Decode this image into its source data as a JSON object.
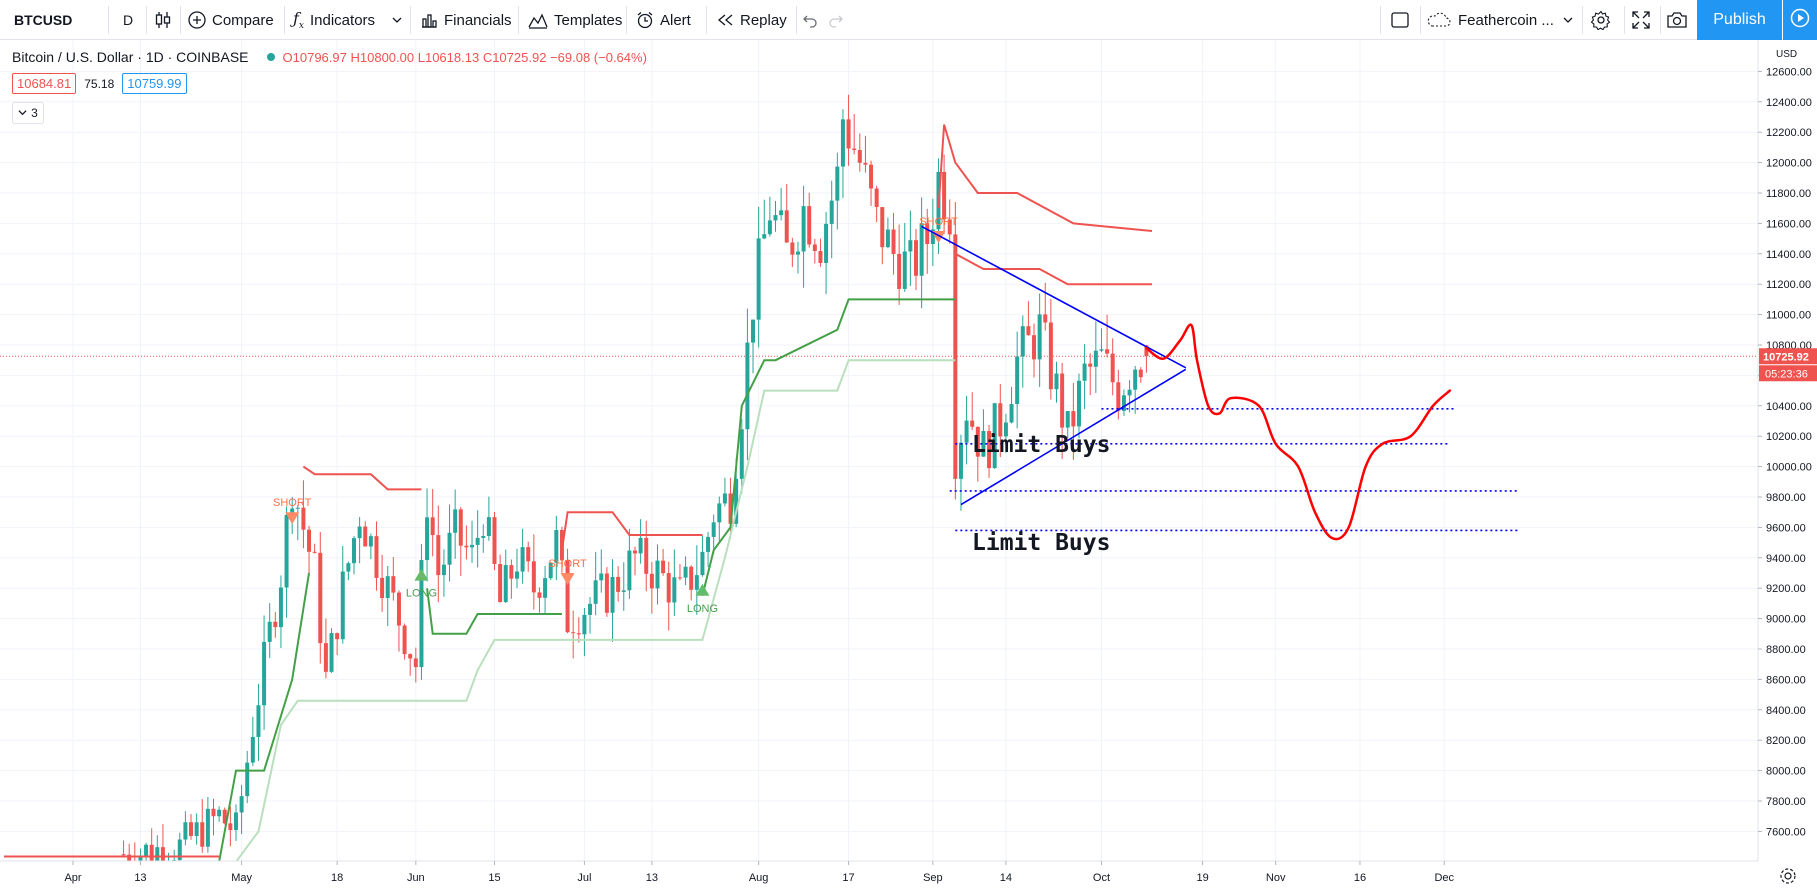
{
  "toolbar": {
    "symbol": "BTCUSD",
    "interval": "D",
    "compare": "Compare",
    "indicators": "Indicators",
    "financials": "Financials",
    "templates": "Templates",
    "alert": "Alert",
    "replay": "Replay",
    "layout_name": "Feathercoin ...",
    "publish": "Publish",
    "icons": [
      "candles-icon",
      "plus-circle-icon",
      "fx-icon",
      "chevron-down-icon",
      "financials-icon",
      "templates-icon",
      "alarm-clock-icon",
      "rewind-icon",
      "undo-icon",
      "redo-icon",
      "square-icon",
      "cloud-icon",
      "gear-icon",
      "fullscreen-icon",
      "camera-icon",
      "play-icon"
    ]
  },
  "legend": {
    "title": "Bitcoin / U.S. Dollar · 1D · COINBASE",
    "open": "O10796.97",
    "high": "H10800.00",
    "low": "L10618.13",
    "close": "C10725.92",
    "change": "−69.08 (−0.64%)",
    "ind_value_1": "10684.81",
    "ind_value_2": "75.18",
    "ind_value_3": "10759.99",
    "collapsed_count": "3"
  },
  "annotations": {
    "limit_buys_1": "Limit Buys",
    "limit_buys_2": "Limit Buys",
    "short_label": "SHORT",
    "long_label": "LONG"
  },
  "price_scale": {
    "currency": "USD",
    "last_price": "10725.92",
    "countdown": "05:23:36"
  },
  "colors": {
    "up": "#26a69a",
    "down": "#ef5350",
    "supertrend_up": "#43a047",
    "supertrend_down": "#ef5350",
    "trendline": "#0000ff",
    "projection": "#ff0000",
    "accent": "#2196f3"
  },
  "chart_data": {
    "type": "candlestick",
    "title": "Bitcoin / U.S. Dollar · 1D · COINBASE",
    "ylim": [
      7400,
      12800
    ],
    "y_ticks": [
      7600,
      7800,
      8000,
      8200,
      8400,
      8600,
      8800,
      9000,
      9200,
      9400,
      9600,
      9800,
      10000,
      10200,
      10400,
      10600,
      10800,
      11000,
      11200,
      11400,
      11600,
      11800,
      12000,
      12200,
      12400,
      12600
    ],
    "x_range": [
      "2019-03-24",
      "2019-12-14"
    ],
    "x_ticks": [
      {
        "label": "Apr",
        "date": "2019-04-01"
      },
      {
        "label": "13",
        "date": "2019-04-13"
      },
      {
        "label": "May",
        "date": "2019-05-01"
      },
      {
        "label": "18",
        "date": "2019-05-18"
      },
      {
        "label": "Jun",
        "date": "2019-06-01"
      },
      {
        "label": "15",
        "date": "2019-06-15"
      },
      {
        "label": "Jul",
        "date": "2019-07-01"
      },
      {
        "label": "13",
        "date": "2019-07-13"
      },
      {
        "label": "Aug",
        "date": "2019-08-01"
      },
      {
        "label": "17",
        "date": "2019-08-17"
      },
      {
        "label": "Sep",
        "date": "2019-09-01"
      },
      {
        "label": "14",
        "date": "2019-09-14"
      },
      {
        "label": "Oct",
        "date": "2019-10-01"
      },
      {
        "label": "19",
        "date": "2019-10-19"
      },
      {
        "label": "Nov",
        "date": "2019-11-01"
      },
      {
        "label": "16",
        "date": "2019-11-16"
      },
      {
        "label": "Dec",
        "date": "2019-12-01"
      }
    ],
    "series": [
      {
        "name": "BTCUSD",
        "anchors": [
          [
            "2019-04-10",
            7450
          ],
          [
            "2019-04-20",
            7500
          ],
          [
            "2019-04-27",
            7700
          ],
          [
            "2019-04-30",
            7600
          ],
          [
            "2019-05-03",
            8300
          ],
          [
            "2019-05-06",
            8900
          ],
          [
            "2019-05-08",
            9300
          ],
          [
            "2019-05-10",
            9900
          ],
          [
            "2019-05-12",
            9600
          ],
          [
            "2019-05-14",
            9300
          ],
          [
            "2019-05-16",
            8600
          ],
          [
            "2019-05-19",
            9200
          ],
          [
            "2019-05-22",
            9700
          ],
          [
            "2019-05-26",
            9300
          ],
          [
            "2019-05-29",
            9000
          ],
          [
            "2019-06-01",
            8700
          ],
          [
            "2019-06-03",
            9800
          ],
          [
            "2019-06-05",
            9300
          ],
          [
            "2019-06-08",
            9550
          ],
          [
            "2019-06-11",
            9400
          ],
          [
            "2019-06-13",
            9700
          ],
          [
            "2019-06-16",
            9100
          ],
          [
            "2019-06-19",
            9400
          ],
          [
            "2019-06-22",
            9200
          ],
          [
            "2019-06-26",
            9500
          ],
          [
            "2019-06-28",
            9000
          ],
          [
            "2019-07-02",
            9100
          ],
          [
            "2019-07-06",
            9200
          ],
          [
            "2019-07-10",
            9400
          ],
          [
            "2019-07-14",
            9300
          ],
          [
            "2019-07-18",
            9150
          ],
          [
            "2019-07-22",
            9400
          ],
          [
            "2019-07-24",
            9700
          ],
          [
            "2019-07-27",
            9800
          ],
          [
            "2019-07-29",
            10400
          ],
          [
            "2019-07-31",
            11100
          ],
          [
            "2019-08-03",
            11700
          ],
          [
            "2019-08-06",
            11400
          ],
          [
            "2019-08-09",
            11700
          ],
          [
            "2019-08-12",
            11500
          ],
          [
            "2019-08-15",
            11900
          ],
          [
            "2019-08-16",
            12300
          ],
          [
            "2019-08-19",
            12000
          ],
          [
            "2019-08-22",
            11600
          ],
          [
            "2019-08-25",
            11400
          ],
          [
            "2019-08-28",
            11300
          ],
          [
            "2019-08-31",
            11500
          ],
          [
            "2019-09-02",
            11900
          ],
          [
            "2019-09-04",
            11700
          ],
          [
            "2019-09-05",
            10100
          ],
          [
            "2019-09-07",
            10400
          ],
          [
            "2019-09-10",
            10100
          ],
          [
            "2019-09-13",
            10300
          ],
          [
            "2019-09-16",
            10700
          ],
          [
            "2019-09-20",
            10900
          ],
          [
            "2019-09-23",
            10500
          ],
          [
            "2019-09-25",
            10200
          ],
          [
            "2019-09-28",
            10600
          ],
          [
            "2019-10-01",
            10700
          ],
          [
            "2019-10-04",
            10500
          ],
          [
            "2019-10-07",
            10700
          ],
          [
            "2019-10-09",
            10725.92
          ]
        ],
        "last": {
          "open": 10796.97,
          "high": 10800.0,
          "low": 10618.13,
          "close": 10725.92
        }
      }
    ],
    "supertrend": {
      "up_segments": [
        [
          [
            "2019-04-27",
            7400
          ],
          [
            "2019-04-30",
            8000
          ],
          [
            "2019-05-05",
            8000
          ],
          [
            "2019-05-10",
            8600
          ],
          [
            "2019-05-13",
            9300
          ]
        ],
        [
          [
            "2019-06-03",
            9200
          ],
          [
            "2019-06-04",
            8900
          ],
          [
            "2019-06-10",
            8900
          ],
          [
            "2019-06-12",
            9030
          ],
          [
            "2019-06-27",
            9030
          ]
        ],
        [
          [
            "2019-07-22",
            9150
          ],
          [
            "2019-07-24",
            9450
          ],
          [
            "2019-07-27",
            9600
          ],
          [
            "2019-07-29",
            10400
          ],
          [
            "2019-08-02",
            10700
          ],
          [
            "2019-08-04",
            10700
          ],
          [
            "2019-08-15",
            10900
          ],
          [
            "2019-08-17",
            11100
          ],
          [
            "2019-09-05",
            11100
          ]
        ]
      ],
      "down_segments": [
        [
          [
            "2019-05-12",
            10000
          ],
          [
            "2019-05-14",
            9950
          ],
          [
            "2019-05-24",
            9950
          ],
          [
            "2019-05-27",
            9850
          ],
          [
            "2019-06-02",
            9850
          ]
        ],
        [
          [
            "2019-06-27",
            9450
          ],
          [
            "2019-06-28",
            9700
          ],
          [
            "2019-07-06",
            9700
          ],
          [
            "2019-07-09",
            9550
          ],
          [
            "2019-07-22",
            9550
          ]
        ],
        [
          [
            "2019-09-02",
            11700
          ],
          [
            "2019-09-03",
            12250
          ],
          [
            "2019-09-05",
            12000
          ],
          [
            "2019-09-09",
            11800
          ],
          [
            "2019-09-16",
            11800
          ],
          [
            "2019-09-26",
            11600
          ],
          [
            "2019-10-10",
            11550
          ]
        ],
        [
          [
            "2019-09-05",
            11400
          ],
          [
            "2019-09-10",
            11300
          ],
          [
            "2019-09-20",
            11300
          ],
          [
            "2019-09-25",
            11200
          ],
          [
            "2019-10-10",
            11200
          ]
        ]
      ],
      "long_band": [
        [
          "2019-04-30",
          7400
        ],
        [
          "2019-05-04",
          7600
        ],
        [
          "2019-05-08",
          8300
        ],
        [
          "2019-05-11",
          8460
        ],
        [
          "2019-06-10",
          8460
        ],
        [
          "2019-06-12",
          8660
        ],
        [
          "2019-06-15",
          8860
        ],
        [
          "2019-07-22",
          8860
        ],
        [
          "2019-07-26",
          9400
        ],
        [
          "2019-07-30",
          10000
        ],
        [
          "2019-08-02",
          10500
        ],
        [
          "2019-08-15",
          10500
        ],
        [
          "2019-08-17",
          10700
        ],
        [
          "2019-09-05",
          10700
        ]
      ]
    },
    "markers": [
      {
        "type": "SHORT",
        "date": "2019-05-10",
        "price": 9700
      },
      {
        "type": "SHORT",
        "date": "2019-06-28",
        "price": 9300
      },
      {
        "type": "SHORT",
        "date": "2019-09-02",
        "price": 11550
      },
      {
        "type": "LONG",
        "date": "2019-06-02",
        "price": 9250
      },
      {
        "type": "LONG",
        "date": "2019-07-22",
        "price": 9150
      }
    ],
    "drawings": {
      "trendline_upper": [
        [
          "2019-08-30",
          11580
        ],
        [
          "2019-10-16",
          10650
        ]
      ],
      "trendline_lower": [
        [
          "2019-09-06",
          9750
        ],
        [
          "2019-10-16",
          10640
        ]
      ],
      "limit_levels": [
        {
          "price": 10380,
          "from": "2019-10-01",
          "to": "2019-12-03"
        },
        {
          "price": 10150,
          "from": "2019-09-05",
          "to": "2019-12-02"
        },
        {
          "price": 9840,
          "from": "2019-09-04",
          "to": "2019-12-14"
        },
        {
          "price": 9580,
          "from": "2019-09-05",
          "to": "2019-12-14"
        }
      ],
      "projection_path": [
        [
          "2019-10-09",
          10780
        ],
        [
          "2019-10-12",
          10710
        ],
        [
          "2019-10-15",
          10830
        ],
        [
          "2019-10-17",
          10930
        ],
        [
          "2019-10-18",
          10700
        ],
        [
          "2019-10-20",
          10400
        ],
        [
          "2019-10-22",
          10350
        ],
        [
          "2019-10-24",
          10450
        ],
        [
          "2019-10-29",
          10400
        ],
        [
          "2019-11-01",
          10150
        ],
        [
          "2019-11-05",
          10000
        ],
        [
          "2019-11-08",
          9700
        ],
        [
          "2019-11-11",
          9530
        ],
        [
          "2019-11-14",
          9600
        ],
        [
          "2019-11-17",
          10000
        ],
        [
          "2019-11-20",
          10150
        ],
        [
          "2019-11-25",
          10200
        ],
        [
          "2019-11-29",
          10400
        ],
        [
          "2019-12-02",
          10500
        ]
      ]
    }
  }
}
